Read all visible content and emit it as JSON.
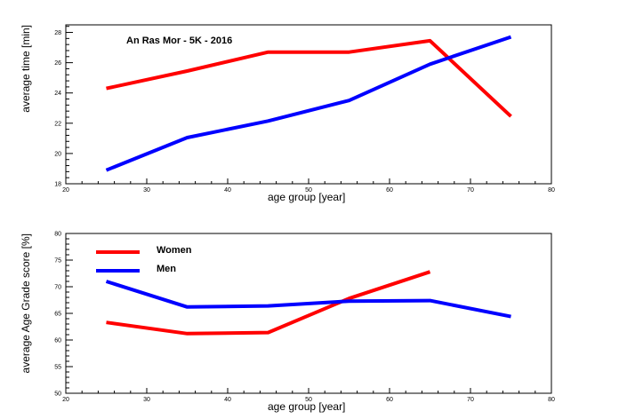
{
  "chart_data": [
    {
      "type": "line",
      "title": "An Ras Mor - 5K - 2016",
      "xlabel": "age group [year]",
      "ylabel": "average time [min]",
      "xlim": [
        20,
        80
      ],
      "ylim": [
        18,
        28.5
      ],
      "xticks": [
        20,
        30,
        40,
        50,
        60,
        70,
        80
      ],
      "yticks": [
        18,
        20,
        22,
        24,
        26,
        28
      ],
      "grid": false,
      "series": [
        {
          "color": "#ff0000",
          "x": [
            25,
            35,
            45,
            55,
            65,
            75
          ],
          "y": [
            24.3,
            25.45,
            26.7,
            26.7,
            27.45,
            22.45
          ]
        },
        {
          "color": "#0000ff",
          "x": [
            25,
            35,
            45,
            55,
            65,
            75
          ],
          "y": [
            18.9,
            21.05,
            22.15,
            23.5,
            25.9,
            27.7
          ]
        }
      ]
    },
    {
      "type": "line",
      "title": "",
      "xlabel": "age group [year]",
      "ylabel": "average Age Grade score [%]",
      "xlim": [
        20,
        80
      ],
      "ylim": [
        50,
        80
      ],
      "xticks": [
        20,
        30,
        40,
        50,
        60,
        70,
        80
      ],
      "yticks": [
        50,
        55,
        60,
        65,
        70,
        75,
        80
      ],
      "grid": false,
      "legend": "top-left",
      "series": [
        {
          "name": "Women",
          "color": "#ff0000",
          "x": [
            25,
            35,
            45,
            55,
            65
          ],
          "y": [
            63.3,
            61.2,
            61.4,
            67.8,
            72.8
          ]
        },
        {
          "name": "Men",
          "color": "#0000ff",
          "x": [
            25,
            35,
            45,
            55,
            65,
            75
          ],
          "y": [
            71.0,
            66.2,
            66.4,
            67.3,
            67.4,
            64.4
          ]
        }
      ]
    }
  ]
}
